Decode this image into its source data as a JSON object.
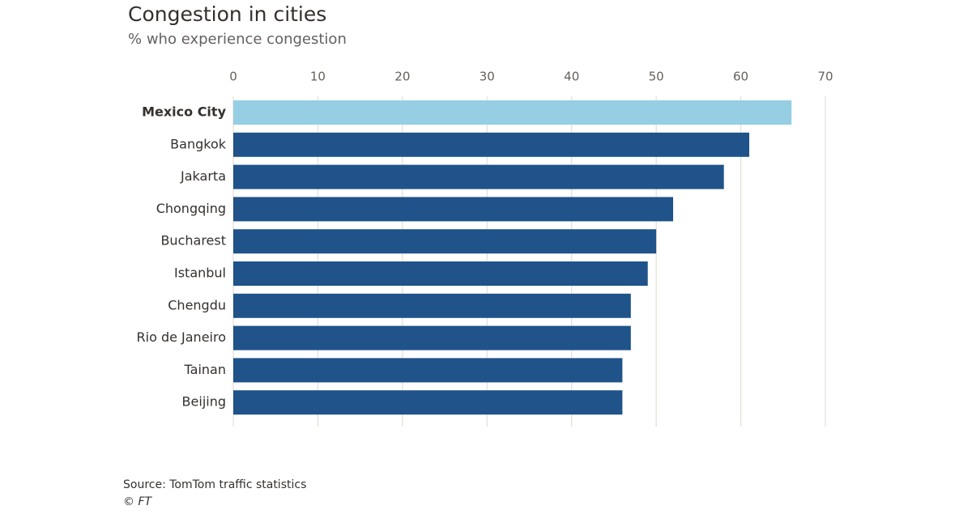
{
  "chart_data": {
    "type": "hbar",
    "title": "Congestion in cities",
    "subtitle": "% who experience congestion",
    "categories": [
      "Mexico City",
      "Bangkok",
      "Jakarta",
      "Chongqing",
      "Bucharest",
      "Istanbul",
      "Chengdu",
      "Rio de Janeiro",
      "Tainan",
      "Beijing"
    ],
    "values": [
      66,
      61,
      58,
      52,
      50,
      49,
      47,
      47,
      46,
      46
    ],
    "colors": [
      "#96cfe3",
      "#1f538a",
      "#1f538a",
      "#1f538a",
      "#1f538a",
      "#1f538a",
      "#1f538a",
      "#1f538a",
      "#1f538a",
      "#1f538a"
    ],
    "xlim": [
      0,
      70
    ],
    "xticks": [
      0,
      10,
      20,
      30,
      40,
      50,
      60,
      70
    ],
    "grid": true,
    "source": "Source: TomTom traffic statistics",
    "credit": "© FT"
  }
}
